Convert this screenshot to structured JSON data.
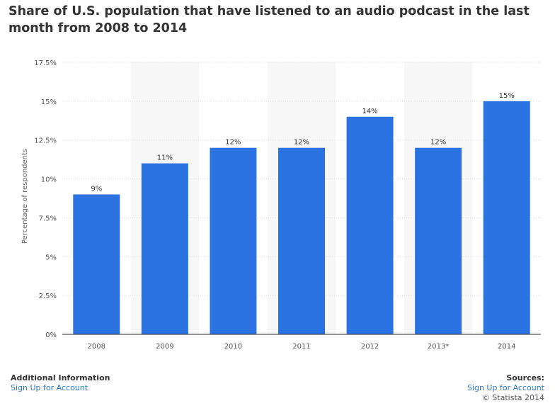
{
  "chart_data": {
    "type": "bar",
    "title": "Share of U.S. population that have listened to an audio podcast in the last month from 2008 to 2014",
    "categories": [
      "2008",
      "2009",
      "2010",
      "2011",
      "2012",
      "2013*",
      "2014"
    ],
    "values": [
      9,
      11,
      12,
      12,
      14,
      12,
      15
    ],
    "value_labels": [
      "9%",
      "11%",
      "12%",
      "12%",
      "14%",
      "12%",
      "15%"
    ],
    "ylabel": "Percentage of respondents",
    "xlabel": "",
    "ylim": [
      0,
      17.5
    ],
    "yticks": [
      0,
      2.5,
      5,
      7.5,
      10,
      12.5,
      15,
      17.5
    ],
    "ytick_labels": [
      "0%",
      "2.5%",
      "5%",
      "7.5%",
      "10%",
      "12.5%",
      "15%",
      "17.5%"
    ],
    "grid": true,
    "bar_color": "#2b73e0"
  },
  "footer": {
    "additional_info_heading": "Additional Information",
    "additional_info_link": "Sign Up for Account",
    "sources_heading": "Sources:",
    "sources_link": "Sign Up for Account",
    "copyright": "© Statista 2014"
  }
}
